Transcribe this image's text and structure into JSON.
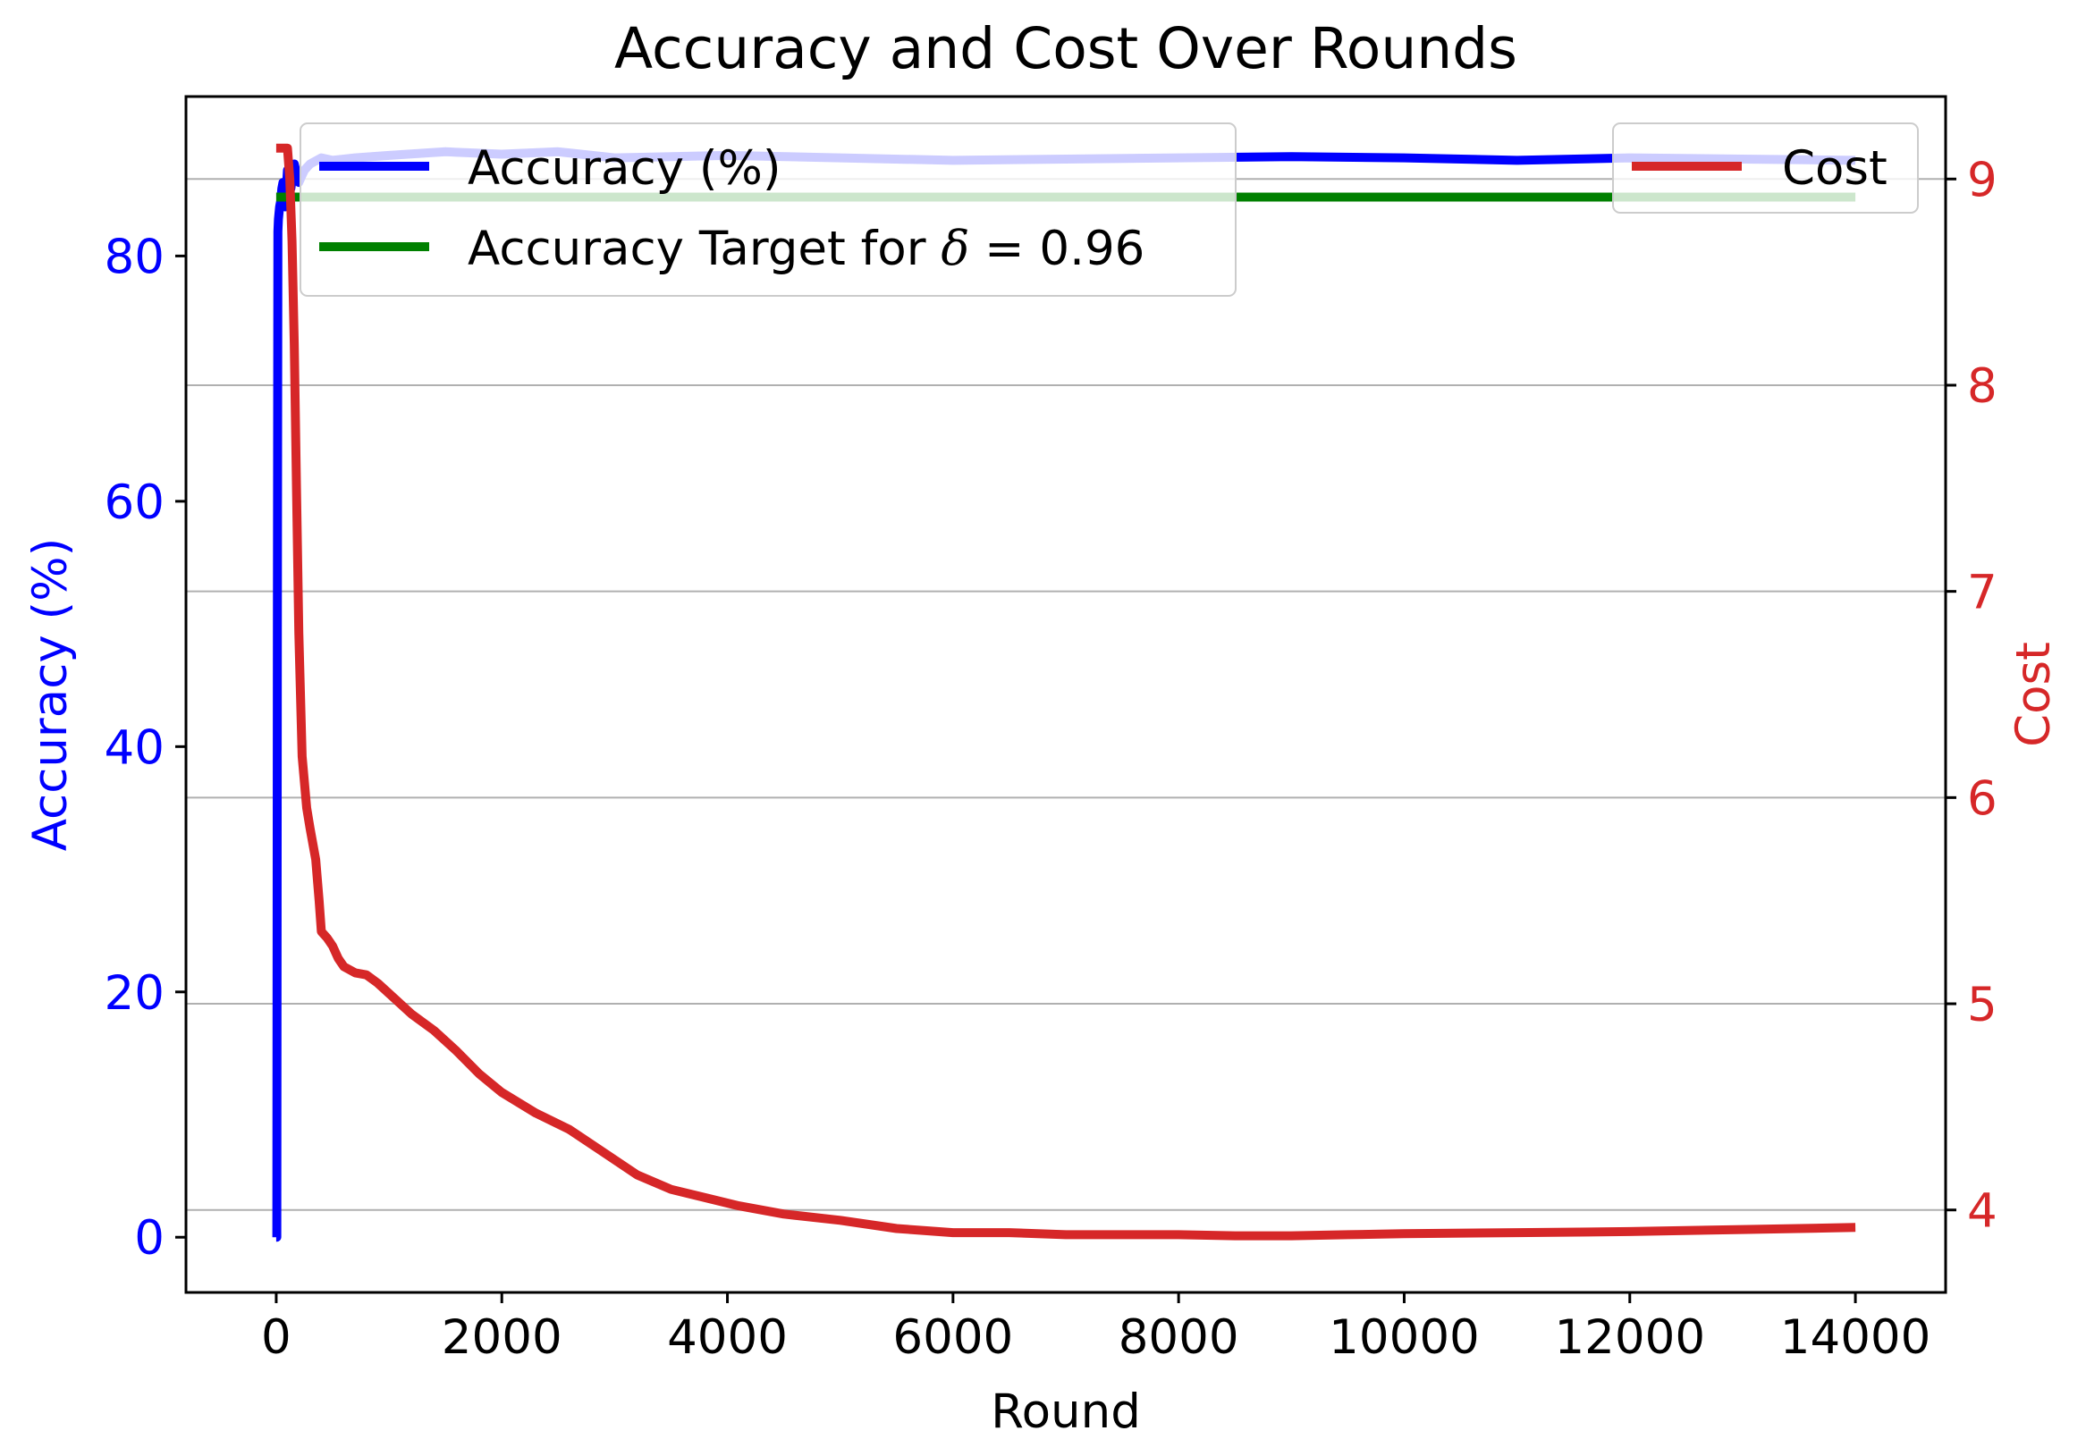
{
  "chart_data": {
    "type": "line",
    "title": "Accuracy and Cost Over Rounds",
    "xlabel": "Round",
    "ylabel_left": "Accuracy (%)",
    "ylabel_right": "Cost",
    "xlim": [
      -800,
      14800
    ],
    "ylim_left": [
      -4.5,
      93
    ],
    "ylim_right": [
      3.6,
      9.4
    ],
    "xticks": [
      0,
      2000,
      4000,
      6000,
      8000,
      10000,
      12000,
      14000
    ],
    "yticks_left": [
      0,
      20,
      40,
      60,
      80
    ],
    "yticks_right": [
      4,
      5,
      6,
      7,
      8,
      9
    ],
    "grid": "horizontal, right axis",
    "colors": {
      "accuracy": "#0000ff",
      "target": "#008000",
      "cost": "#d62728",
      "left_axis_text": "#0000ff",
      "right_axis_text": "#d62728",
      "grid": "#b0b0b0"
    },
    "legends": [
      {
        "position": "upper-left",
        "entries": [
          {
            "label": "Accuracy (%)",
            "series": "accuracy"
          },
          {
            "label_prefix": "Accuracy Target for ",
            "label_symbol": "δ",
            "label_suffix": " = 0.96",
            "series": "target"
          }
        ]
      },
      {
        "position": "upper-right",
        "entries": [
          {
            "label": "Cost",
            "series": "cost"
          }
        ]
      }
    ],
    "series": [
      {
        "name": "Accuracy (%)",
        "key": "accuracy",
        "axis": "left",
        "x": [
          0,
          5,
          10,
          15,
          20,
          30,
          40,
          50,
          60,
          80,
          100,
          130,
          160,
          200,
          250,
          300,
          400,
          500,
          700,
          1000,
          1500,
          2000,
          2500,
          3000,
          4000,
          5000,
          6000,
          7000,
          8000,
          9000,
          10000,
          11000,
          12000,
          13000,
          14000
        ],
        "y": [
          0,
          0,
          50,
          82,
          83,
          84,
          84.5,
          85.5,
          86,
          84,
          87,
          85.5,
          87.5,
          86,
          87,
          87.5,
          88,
          87.8,
          88,
          88.2,
          88.5,
          88.3,
          88.5,
          88,
          88.2,
          88,
          87.8,
          87.9,
          88,
          88.1,
          88,
          87.8,
          88,
          87.9,
          87.8
        ]
      },
      {
        "name": "Accuracy Target for δ = 0.96",
        "key": "target",
        "axis": "left",
        "x": [
          0,
          14000
        ],
        "y": [
          84.8,
          84.8
        ]
      },
      {
        "name": "Cost",
        "key": "cost",
        "axis": "right",
        "x": [
          0,
          50,
          100,
          120,
          140,
          160,
          180,
          200,
          230,
          270,
          300,
          350,
          380,
          400,
          450,
          500,
          550,
          600,
          700,
          800,
          900,
          1000,
          1200,
          1400,
          1600,
          1800,
          2000,
          2300,
          2600,
          2900,
          3200,
          3500,
          3800,
          4100,
          4500,
          5000,
          5500,
          6000,
          6500,
          7000,
          7500,
          8000,
          8500,
          9000,
          9500,
          10000,
          11000,
          12000,
          13000,
          14000
        ],
        "y": [
          9.15,
          9.15,
          9.15,
          9.0,
          8.7,
          8.2,
          7.5,
          6.8,
          6.2,
          5.95,
          5.85,
          5.7,
          5.5,
          5.35,
          5.32,
          5.28,
          5.22,
          5.18,
          5.15,
          5.14,
          5.1,
          5.05,
          4.95,
          4.87,
          4.77,
          4.66,
          4.57,
          4.47,
          4.39,
          4.28,
          4.17,
          4.1,
          4.06,
          4.02,
          3.98,
          3.95,
          3.91,
          3.89,
          3.89,
          3.88,
          3.88,
          3.88,
          3.875,
          3.875,
          3.88,
          3.885,
          3.89,
          3.895,
          3.905,
          3.915
        ]
      }
    ]
  }
}
